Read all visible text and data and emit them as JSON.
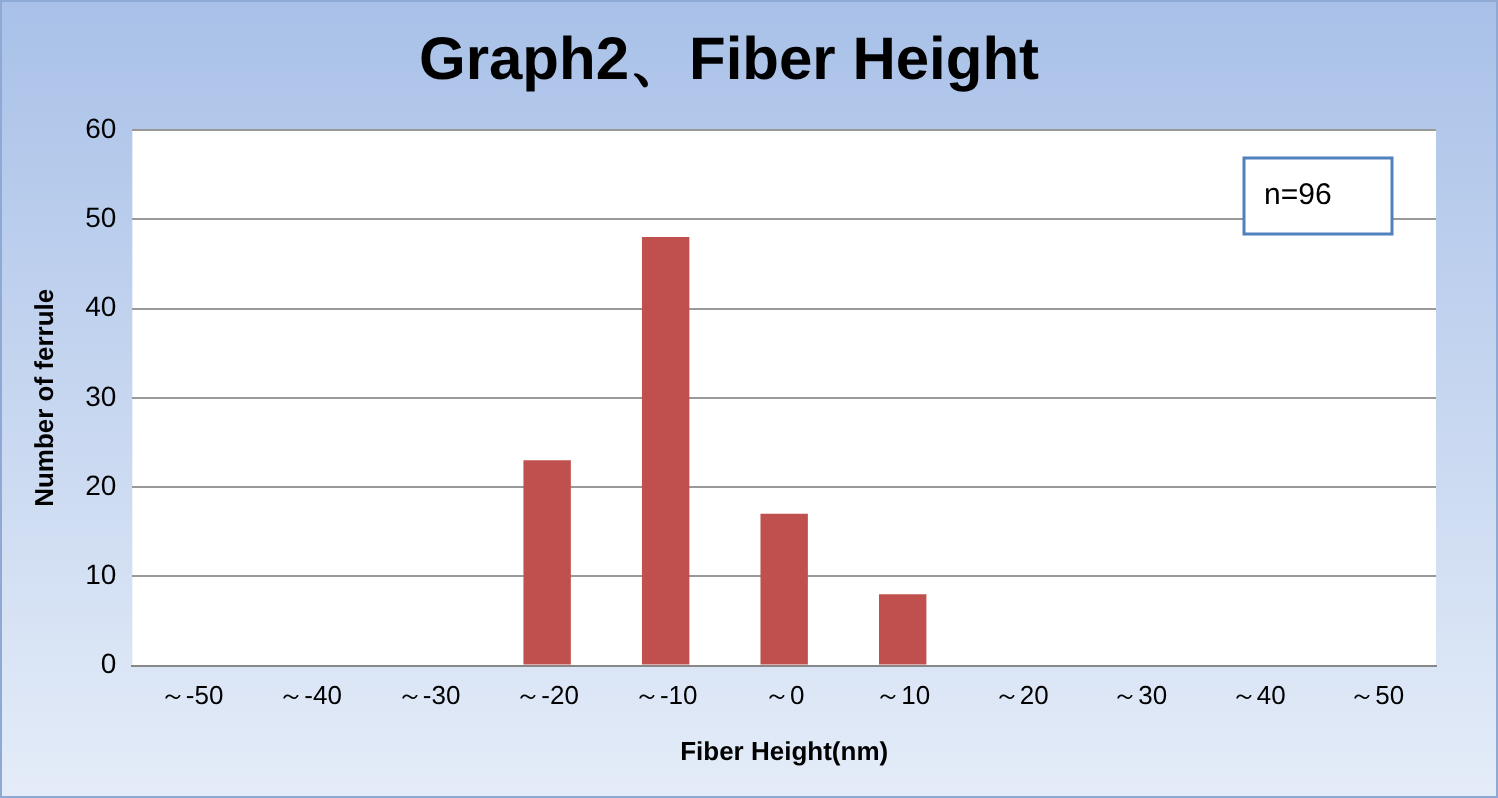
{
  "chart_data": {
    "type": "bar",
    "title": "Graph2、Fiber Height",
    "xlabel": "Fiber Height(nm)",
    "ylabel": "Number of ferrule",
    "categories": [
      "～-50",
      "～-40",
      "～-30",
      "～-20",
      "～-10",
      "～0",
      "～10",
      "～20",
      "～30",
      "～40",
      "～50"
    ],
    "values": [
      0,
      0,
      0,
      23,
      48,
      17,
      8,
      0,
      0,
      0,
      0
    ],
    "color": "#c0504d",
    "ylim": [
      0,
      60
    ],
    "yticks": [
      0,
      10,
      20,
      30,
      40,
      50,
      60
    ],
    "grid": "y",
    "legend": false,
    "annotations": [
      "n=96"
    ]
  }
}
